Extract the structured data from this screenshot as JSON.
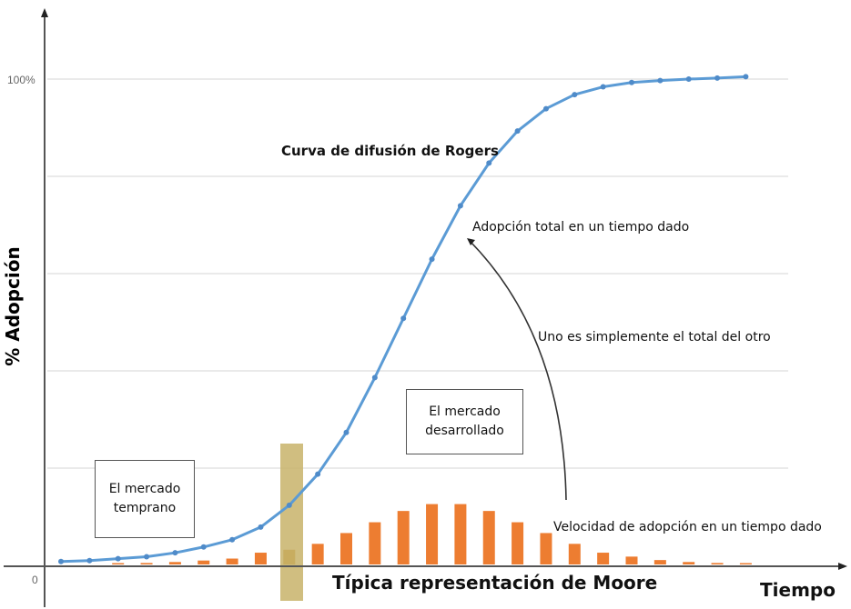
{
  "chart_data": {
    "type": "line+bar",
    "title": "Curva de difusión de Rogers",
    "subtitle": "Típica representación de Moore",
    "xlabel": "Tiempo",
    "ylabel": "% Adopción",
    "y_ticks": [
      "0",
      "100%"
    ],
    "ylim": [
      0,
      100
    ],
    "grid": true,
    "series": [
      {
        "name": "Adopción total en un tiempo dado",
        "type": "line",
        "color": "#5b9bd5",
        "values": [
          0.6,
          0.8,
          1.2,
          1.6,
          2.4,
          3.6,
          5.1,
          7.7,
          12.2,
          18.6,
          27.2,
          38.5,
          50.7,
          62.9,
          73.9,
          82.7,
          89.3,
          93.9,
          96.8,
          98.4,
          99.3,
          99.7,
          100.0,
          100.2,
          100.5
        ]
      },
      {
        "name": "Velocidad de adopción en un tiempo dado",
        "type": "bar",
        "color": "#ed7d31",
        "values": [
          0,
          0,
          0.2,
          0.3,
          0.5,
          0.8,
          1.2,
          2.4,
          3.0,
          4.2,
          6.4,
          8.6,
          10.9,
          12.3,
          12.3,
          10.9,
          8.6,
          6.4,
          4.2,
          2.4,
          1.6,
          0.9,
          0.5,
          0.3,
          0.2
        ]
      }
    ],
    "annotations": [
      "Curva de difusión de Rogers",
      "Adopción total en un tiempo dado",
      "Uno es simplemente el total del otro",
      "El mercado desarrollado",
      "El mercado temprano",
      "Velocidad de adopción en un tiempo dado",
      "Típica representación de Moore",
      "Tiempo"
    ],
    "highlight": {
      "index": 8,
      "color": "#c8b36a"
    }
  },
  "labels": {
    "ytick_top": "100%",
    "ytick_zero": "0",
    "ylabel": "% Adopción",
    "xlabel": "Tiempo",
    "title_rogers": "Curva de difusión de Rogers",
    "title_moore": "Típica representación de Moore",
    "total_adoption": "Adopción total en un tiempo dado",
    "relation": "Uno es simplemente el total del otro",
    "velocity": "Velocidad de adopción en un tiempo dado",
    "early_market_1": "El mercado",
    "early_market_2": "temprano",
    "developed_market_1": "El mercado",
    "developed_market_2": "desarrollado"
  }
}
